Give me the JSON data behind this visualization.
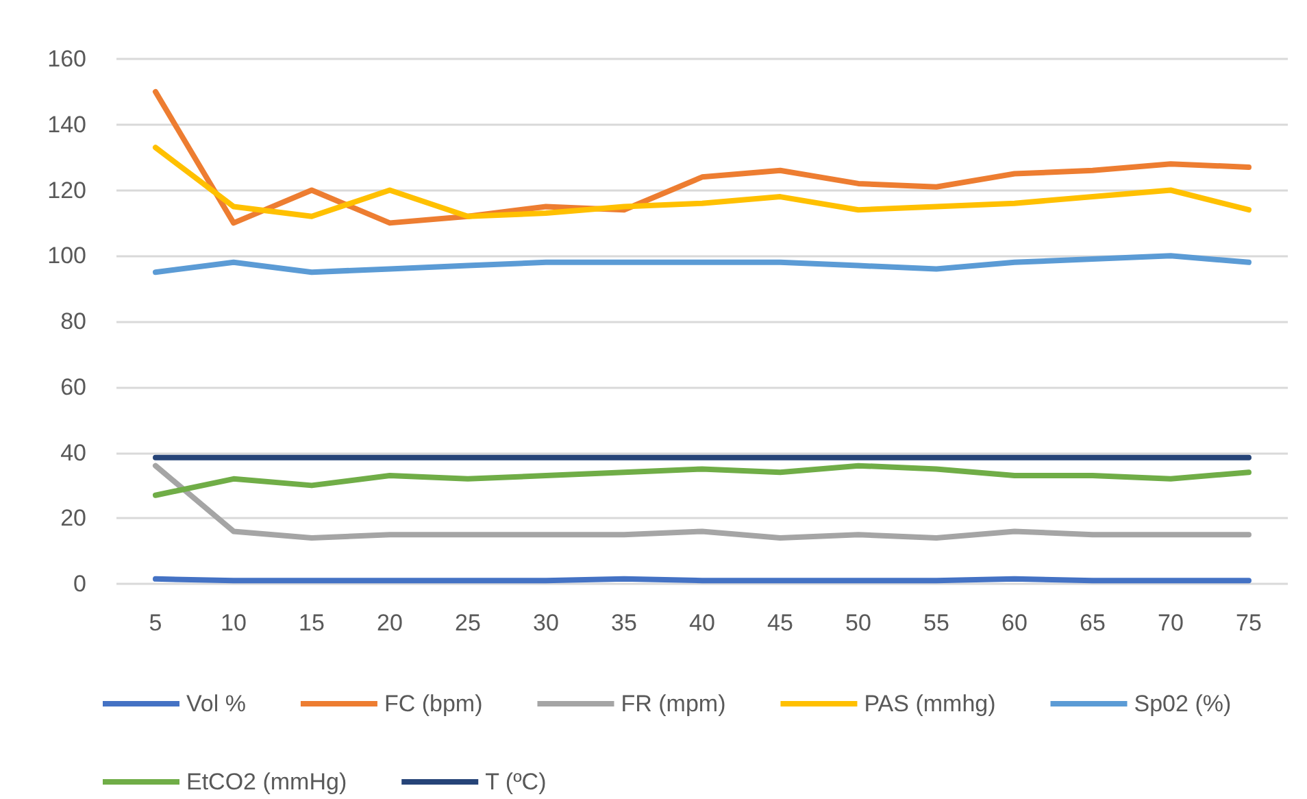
{
  "chart_data": {
    "type": "line",
    "categories": [
      "5",
      "10",
      "15",
      "20",
      "25",
      "30",
      "35",
      "40",
      "45",
      "50",
      "55",
      "60",
      "65",
      "70",
      "75"
    ],
    "series": [
      {
        "name": "Vol %",
        "color": "#4472c4",
        "values": [
          1.5,
          1,
          1,
          1,
          1,
          1,
          1.5,
          1,
          1,
          1,
          1,
          1.5,
          1,
          1,
          1
        ]
      },
      {
        "name": "FC (bpm)",
        "color": "#ed7d31",
        "values": [
          150,
          110,
          120,
          110,
          112,
          115,
          114,
          124,
          126,
          122,
          121,
          125,
          126,
          128,
          127
        ]
      },
      {
        "name": "FR (mpm)",
        "color": "#a5a5a5",
        "values": [
          36,
          16,
          14,
          15,
          15,
          15,
          15,
          16,
          14,
          15,
          14,
          16,
          15,
          15,
          15
        ]
      },
      {
        "name": "PAS (mmhg)",
        "color": "#ffc000",
        "values": [
          133,
          115,
          112,
          120,
          112,
          113,
          115,
          116,
          118,
          114,
          115,
          116,
          118,
          120,
          114
        ]
      },
      {
        "name": "Sp02 (%)",
        "color": "#5b9bd5",
        "values": [
          95,
          98,
          95,
          96,
          97,
          98,
          98,
          98,
          98,
          97,
          96,
          98,
          99,
          100,
          98
        ]
      },
      {
        "name": "EtCO2 (mmHg)",
        "color": "#70ad47",
        "values": [
          27,
          32,
          30,
          33,
          32,
          33,
          34,
          35,
          34,
          36,
          35,
          33,
          33,
          32,
          34
        ]
      },
      {
        "name": "T (ºC)",
        "color": "#264478",
        "values": [
          38.5,
          38.5,
          38.5,
          38.5,
          38.5,
          38.5,
          38.5,
          38.5,
          38.5,
          38.5,
          38.5,
          38.5,
          38.5,
          38.5,
          38.5
        ]
      }
    ],
    "ylim": [
      0,
      160
    ],
    "yticks": [
      0,
      20,
      40,
      60,
      80,
      100,
      120,
      140,
      160
    ],
    "grid": "y",
    "legend": "bottom",
    "marker": "none",
    "line_style": "solid"
  }
}
